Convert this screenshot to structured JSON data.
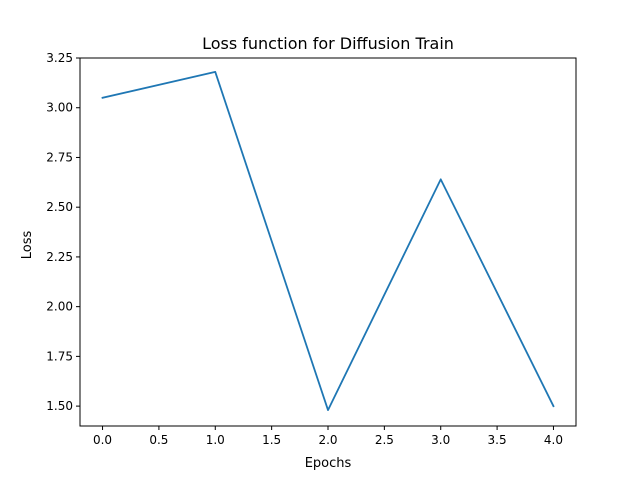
{
  "chart_data": {
    "type": "line",
    "title": "Loss function for Diffusion Train",
    "xlabel": "Epochs",
    "ylabel": "Loss",
    "xlim": [
      -0.2,
      4.2
    ],
    "ylim": [
      1.4,
      3.25
    ],
    "xticks": [
      0.0,
      0.5,
      1.0,
      1.5,
      2.0,
      2.5,
      3.0,
      3.5,
      4.0
    ],
    "xtick_labels": [
      "0.0",
      "0.5",
      "1.0",
      "1.5",
      "2.0",
      "2.5",
      "3.0",
      "3.5",
      "4.0"
    ],
    "yticks": [
      1.5,
      1.75,
      2.0,
      2.25,
      2.5,
      2.75,
      3.0,
      3.25
    ],
    "ytick_labels": [
      "1.50",
      "1.75",
      "2.00",
      "2.25",
      "2.50",
      "2.75",
      "3.00",
      "3.25"
    ],
    "grid": false,
    "series": [
      {
        "color": "#1f77b4",
        "x": [
          0,
          1,
          2,
          3,
          4
        ],
        "y": [
          3.05,
          3.18,
          1.48,
          2.64,
          1.5
        ]
      }
    ]
  }
}
